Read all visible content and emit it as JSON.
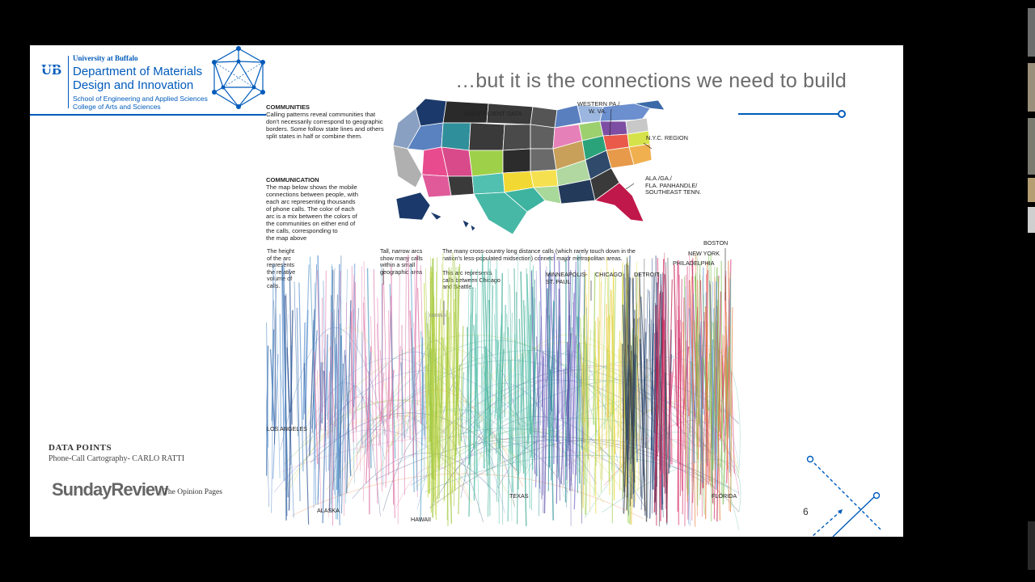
{
  "header": {
    "university": "University at Buffalo",
    "department_line1": "Department of Materials",
    "department_line2": "Design and Innovation",
    "school": "School of Engineering and Applied Sciences",
    "college": "College of Arts and Sciences",
    "logo_text": "UB"
  },
  "slide": {
    "title": "…but it is the connections we need to build",
    "page_number": "6",
    "data_points_title": "DATA POINTS",
    "data_points_subtitle": "Phone-Call Cartography-  CARLO RATTI",
    "sunday_review": "SundayReview",
    "opinion_pages": "| The Opinion Pages"
  },
  "infographic": {
    "communities_heading": "COMMUNITIES",
    "communities_text": [
      "Calling patterns reveal communities that",
      "don't necessarily correspond to geographic",
      "borders. Some follow state lines and others",
      "split states in half or combine them."
    ],
    "communication_heading": "COMMUNICATION",
    "communication_text": [
      "The map below shows the mobile",
      "connections between people, with",
      "each arc representing thousands",
      "of phone calls. The color of each",
      "arc is a mix between the colors of",
      "the communities on either end of",
      "the calls, corresponding to",
      "the map above"
    ],
    "map_labels": {
      "insufficient": "INSUFFICIENT  DATA",
      "western_pa": [
        "WESTERN PA./",
        "W. VA."
      ],
      "nyc": "N.Y.C. REGION",
      "ala": [
        "ALA./GA./",
        "FLA. PANHANDLE/",
        "SOUTHEAST TENN."
      ]
    },
    "arc_notes": {
      "height": [
        "The height",
        "of the arc",
        "represents",
        "the relative",
        "volume of",
        "calls."
      ],
      "tall": [
        "Tall, narrow arcs",
        "show many calls",
        "within a small",
        "geographic area"
      ],
      "cross_country": [
        "The many cross-country long distance calls (which rarely touch down in the",
        "nation's less-populated midsection) connect major metropolitan areas."
      ],
      "this_arc": [
        "This arc represents",
        "calls between Chicago",
        "and Seattle."
      ]
    },
    "cities": {
      "boston": "BOSTON",
      "new_york": "NEW YORK",
      "philadelphia": "PHILADELPHIA",
      "minneapolis": [
        "MINNEAPOLIS-",
        "ST. PAUL"
      ],
      "chicago": "CHICAGO",
      "detroit": "DETROIT",
      "denver": "DENVER",
      "los_angeles": "LOS ANGELES",
      "alaska": "ALASKA",
      "hawaii": "HAWAII",
      "texas": "TEXAS",
      "florida": "FLORIDA"
    }
  },
  "colors": {
    "ub_blue": "#005bbb",
    "title_gray": "#6b6b6b"
  }
}
